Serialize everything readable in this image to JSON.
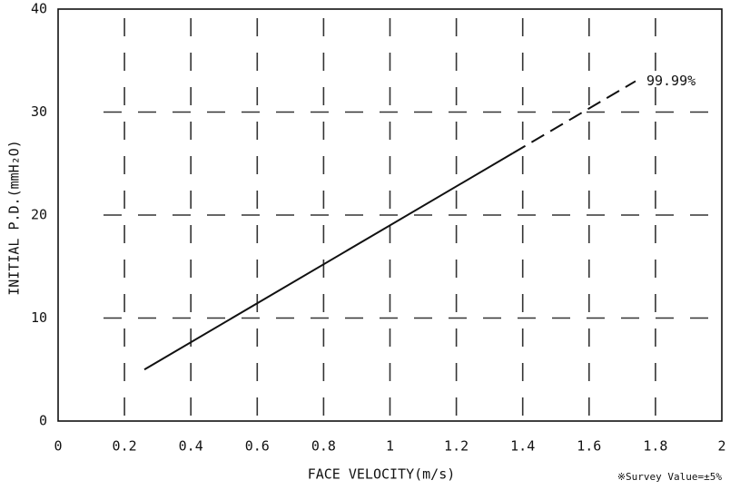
{
  "chart_data": {
    "type": "line",
    "x_label": "FACE VELOCITY(m/s)",
    "y_label": "INITIAL P.D.(mmH₂O)",
    "note": "※Survey Value=±5%",
    "x": [
      0.26,
      1.37,
      1.74
    ],
    "series": [
      {
        "name": "99.99%",
        "color": "#111111",
        "values": [
          5,
          26,
          33
        ],
        "segment_styles": [
          "solid",
          "dashed"
        ]
      }
    ],
    "xlim": [
      0,
      2
    ],
    "xticks": [
      0,
      0.2,
      0.4,
      0.6,
      0.8,
      1,
      1.2,
      1.4,
      1.6,
      1.8,
      2
    ],
    "ylim": [
      0,
      40
    ],
    "yticks": [
      0,
      10,
      20,
      30,
      40
    ],
    "grid": true
  }
}
